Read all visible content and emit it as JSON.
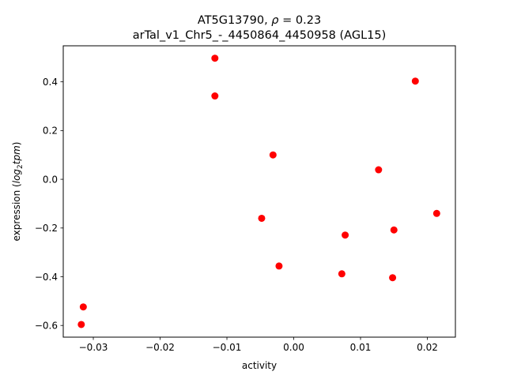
{
  "chart_data": {
    "type": "scatter",
    "title_line1_prefix": "AT5G13790, ",
    "title_rho_symbol": "ρ",
    "title_line1_suffix": " = 0.23",
    "title_line2": "arTal_v1_Chr5_-_4450864_4450958 (AGL15)",
    "xlabel": "activity",
    "ylabel_prefix": "expression (",
    "ylabel_log": "log",
    "ylabel_sub": "2",
    "ylabel_tpm": "tpm",
    "ylabel_suffix": ")",
    "xlim": [
      -0.0345,
      0.0242
    ],
    "ylim": [
      -0.648,
      0.548
    ],
    "x_ticks": [
      -0.03,
      -0.02,
      -0.01,
      0.0,
      0.01,
      0.02
    ],
    "x_tick_labels": [
      "−0.03",
      "−0.02",
      "−0.01",
      "0.00",
      "0.01",
      "0.02"
    ],
    "y_ticks": [
      -0.6,
      -0.4,
      -0.2,
      0.0,
      0.2,
      0.4
    ],
    "y_tick_labels": [
      "−0.6",
      "−0.4",
      "−0.2",
      "0.0",
      "0.2",
      "0.4"
    ],
    "marker_color": "#ff0000",
    "points": [
      {
        "x": -0.0318,
        "y": -0.596
      },
      {
        "x": -0.0315,
        "y": -0.524
      },
      {
        "x": -0.0118,
        "y": 0.497
      },
      {
        "x": -0.0118,
        "y": 0.342
      },
      {
        "x": -0.0031,
        "y": 0.1
      },
      {
        "x": -0.0048,
        "y": -0.16
      },
      {
        "x": -0.0022,
        "y": -0.356
      },
      {
        "x": 0.0072,
        "y": -0.388
      },
      {
        "x": 0.0077,
        "y": -0.229
      },
      {
        "x": 0.0127,
        "y": 0.039
      },
      {
        "x": 0.0148,
        "y": -0.404
      },
      {
        "x": 0.015,
        "y": -0.208
      },
      {
        "x": 0.0182,
        "y": 0.403
      },
      {
        "x": 0.0214,
        "y": -0.14
      }
    ]
  }
}
